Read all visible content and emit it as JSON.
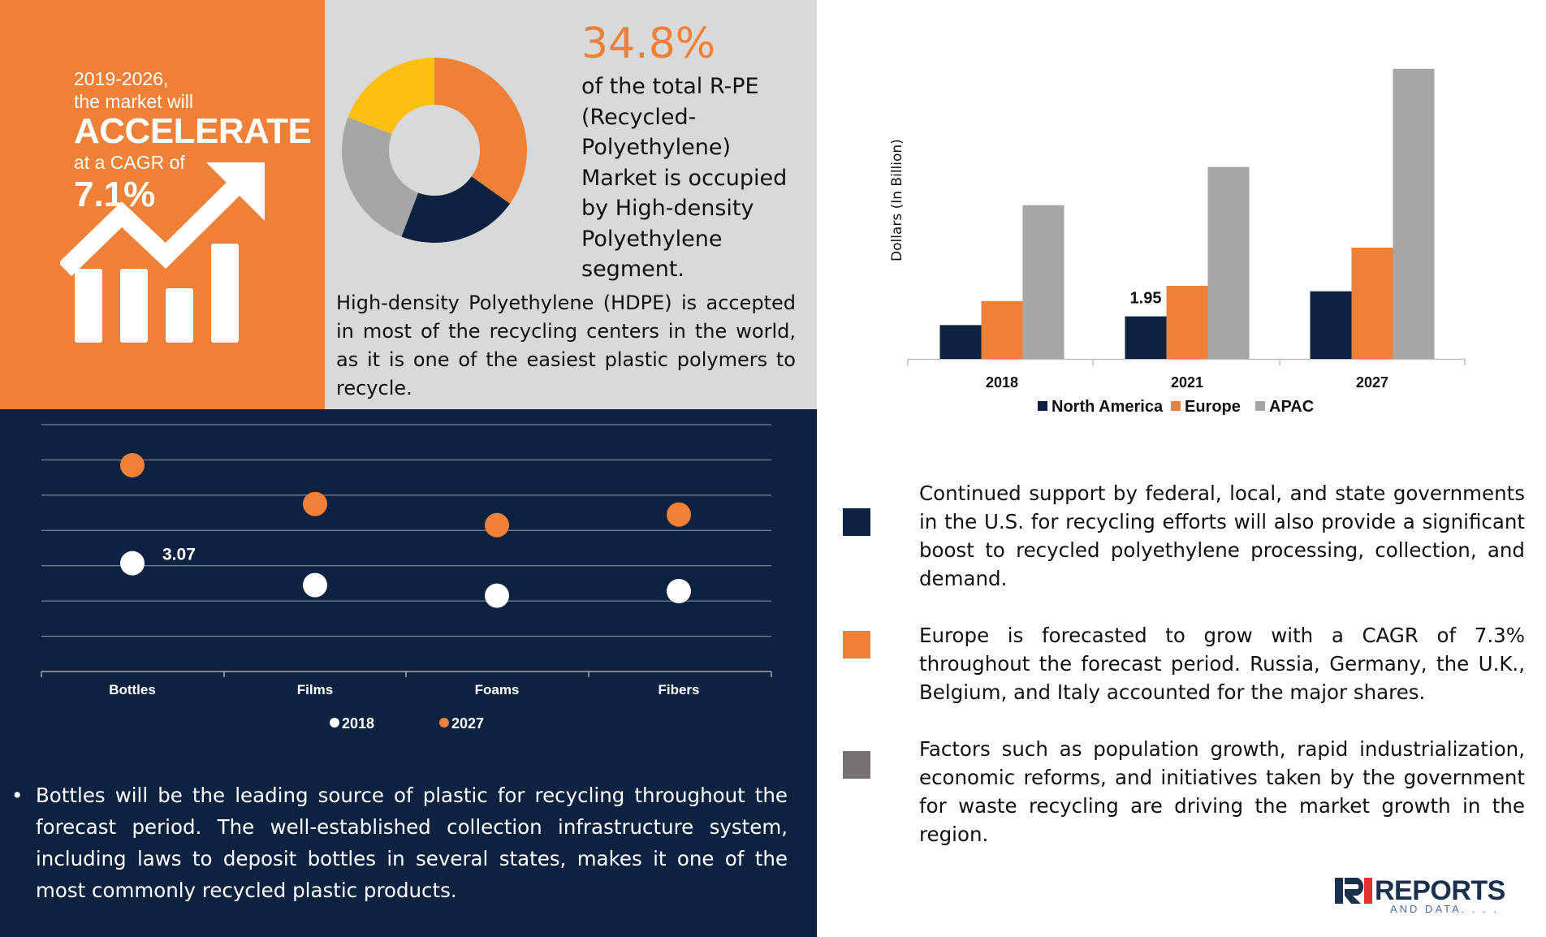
{
  "growth": {
    "period": "2019-2026,",
    "lead": "the market will",
    "verb": "ACCELERATE",
    "cagr_label": "at a CAGR of",
    "cagr_value": "7.1%"
  },
  "share": {
    "percent": "34.8%",
    "description": "of the total R-PE (Recycled-Polyethylene) Market is occupied by High-density Polyethylene segment."
  },
  "hdpe_note": "High-density Polyethylene (HDPE) is accepted in most of the recycling centers in the world, as it is one of the easiest plastic polymers to recycle.",
  "bottles_note": {
    "bullet": "•",
    "text": "Bottles will be the leading source of plastic for recycling throughout the forecast period. The well-established collection infrastructure system, including laws to deposit bottles in several states, makes it one of the most commonly recycled plastic products."
  },
  "notes": [
    {
      "text": "Continued support by federal, local, and state governments in the U.S. for recycling efforts will also provide a significant boost to recycled polyethylene processing, collection, and demand.",
      "color": "#0d2240"
    },
    {
      "text": "Europe is forecasted to grow with a CAGR of 7.3% throughout the forecast period. Russia, Germany, the U.K., Belgium, and Italy accounted for the major shares.",
      "color": "#ee8137"
    },
    {
      "text": "Factors such as population growth, rapid industrialization, economic reforms, and initiatives taken by the government for waste recycling are driving the market growth in the region.",
      "color": "#757171"
    }
  ],
  "logo": {
    "word": "REPORTS",
    "tag": "AND DATA. . . ."
  },
  "colors": {
    "orange": "#ee8137",
    "navy": "#0d2240",
    "gray": "#a6a6a6",
    "light_gray": "#d9d9d9",
    "yellow": "#fdbf0f"
  },
  "chart_data": [
    {
      "type": "pie",
      "title": "",
      "donut": true,
      "slices": [
        {
          "value": 34.8,
          "color": "#ee8137"
        },
        {
          "value": 21.0,
          "color": "#0d2240"
        },
        {
          "value": 25.0,
          "color": "#a6a6a6"
        },
        {
          "value": 19.2,
          "color": "#fdbf0f"
        }
      ]
    },
    {
      "type": "bar",
      "title": "",
      "ylabel": "Dollars (In Billion)",
      "xlabel": "",
      "categories": [
        "2018",
        "2021",
        "2027"
      ],
      "series": [
        {
          "name": "North America",
          "values": [
            1.55,
            1.95,
            3.1
          ],
          "color": "#0d2240"
        },
        {
          "name": "Europe",
          "values": [
            2.65,
            3.35,
            5.1
          ],
          "color": "#ee8137"
        },
        {
          "name": "APAC",
          "values": [
            7.05,
            8.8,
            13.3
          ],
          "color": "#a6a6a6"
        }
      ],
      "data_labels": [
        {
          "series": "North America",
          "category": "2021",
          "text": "1.95"
        }
      ],
      "ylim": [
        0,
        14
      ],
      "legend": "bottom",
      "grid": false
    },
    {
      "type": "scatter",
      "title": "",
      "categories": [
        "Bottles",
        "Films",
        "Foams",
        "Fibers"
      ],
      "series": [
        {
          "name": "2018",
          "values": [
            3.07,
            2.45,
            2.15,
            2.28
          ],
          "color": "#ffffff"
        },
        {
          "name": "2027",
          "values": [
            5.85,
            4.75,
            4.15,
            4.45
          ],
          "color": "#ee8137"
        }
      ],
      "data_labels": [
        {
          "series": "2018",
          "category": "Bottles",
          "text": "3.07"
        }
      ],
      "ylim": [
        0,
        7
      ],
      "legend": "bottom",
      "grid": true
    }
  ]
}
